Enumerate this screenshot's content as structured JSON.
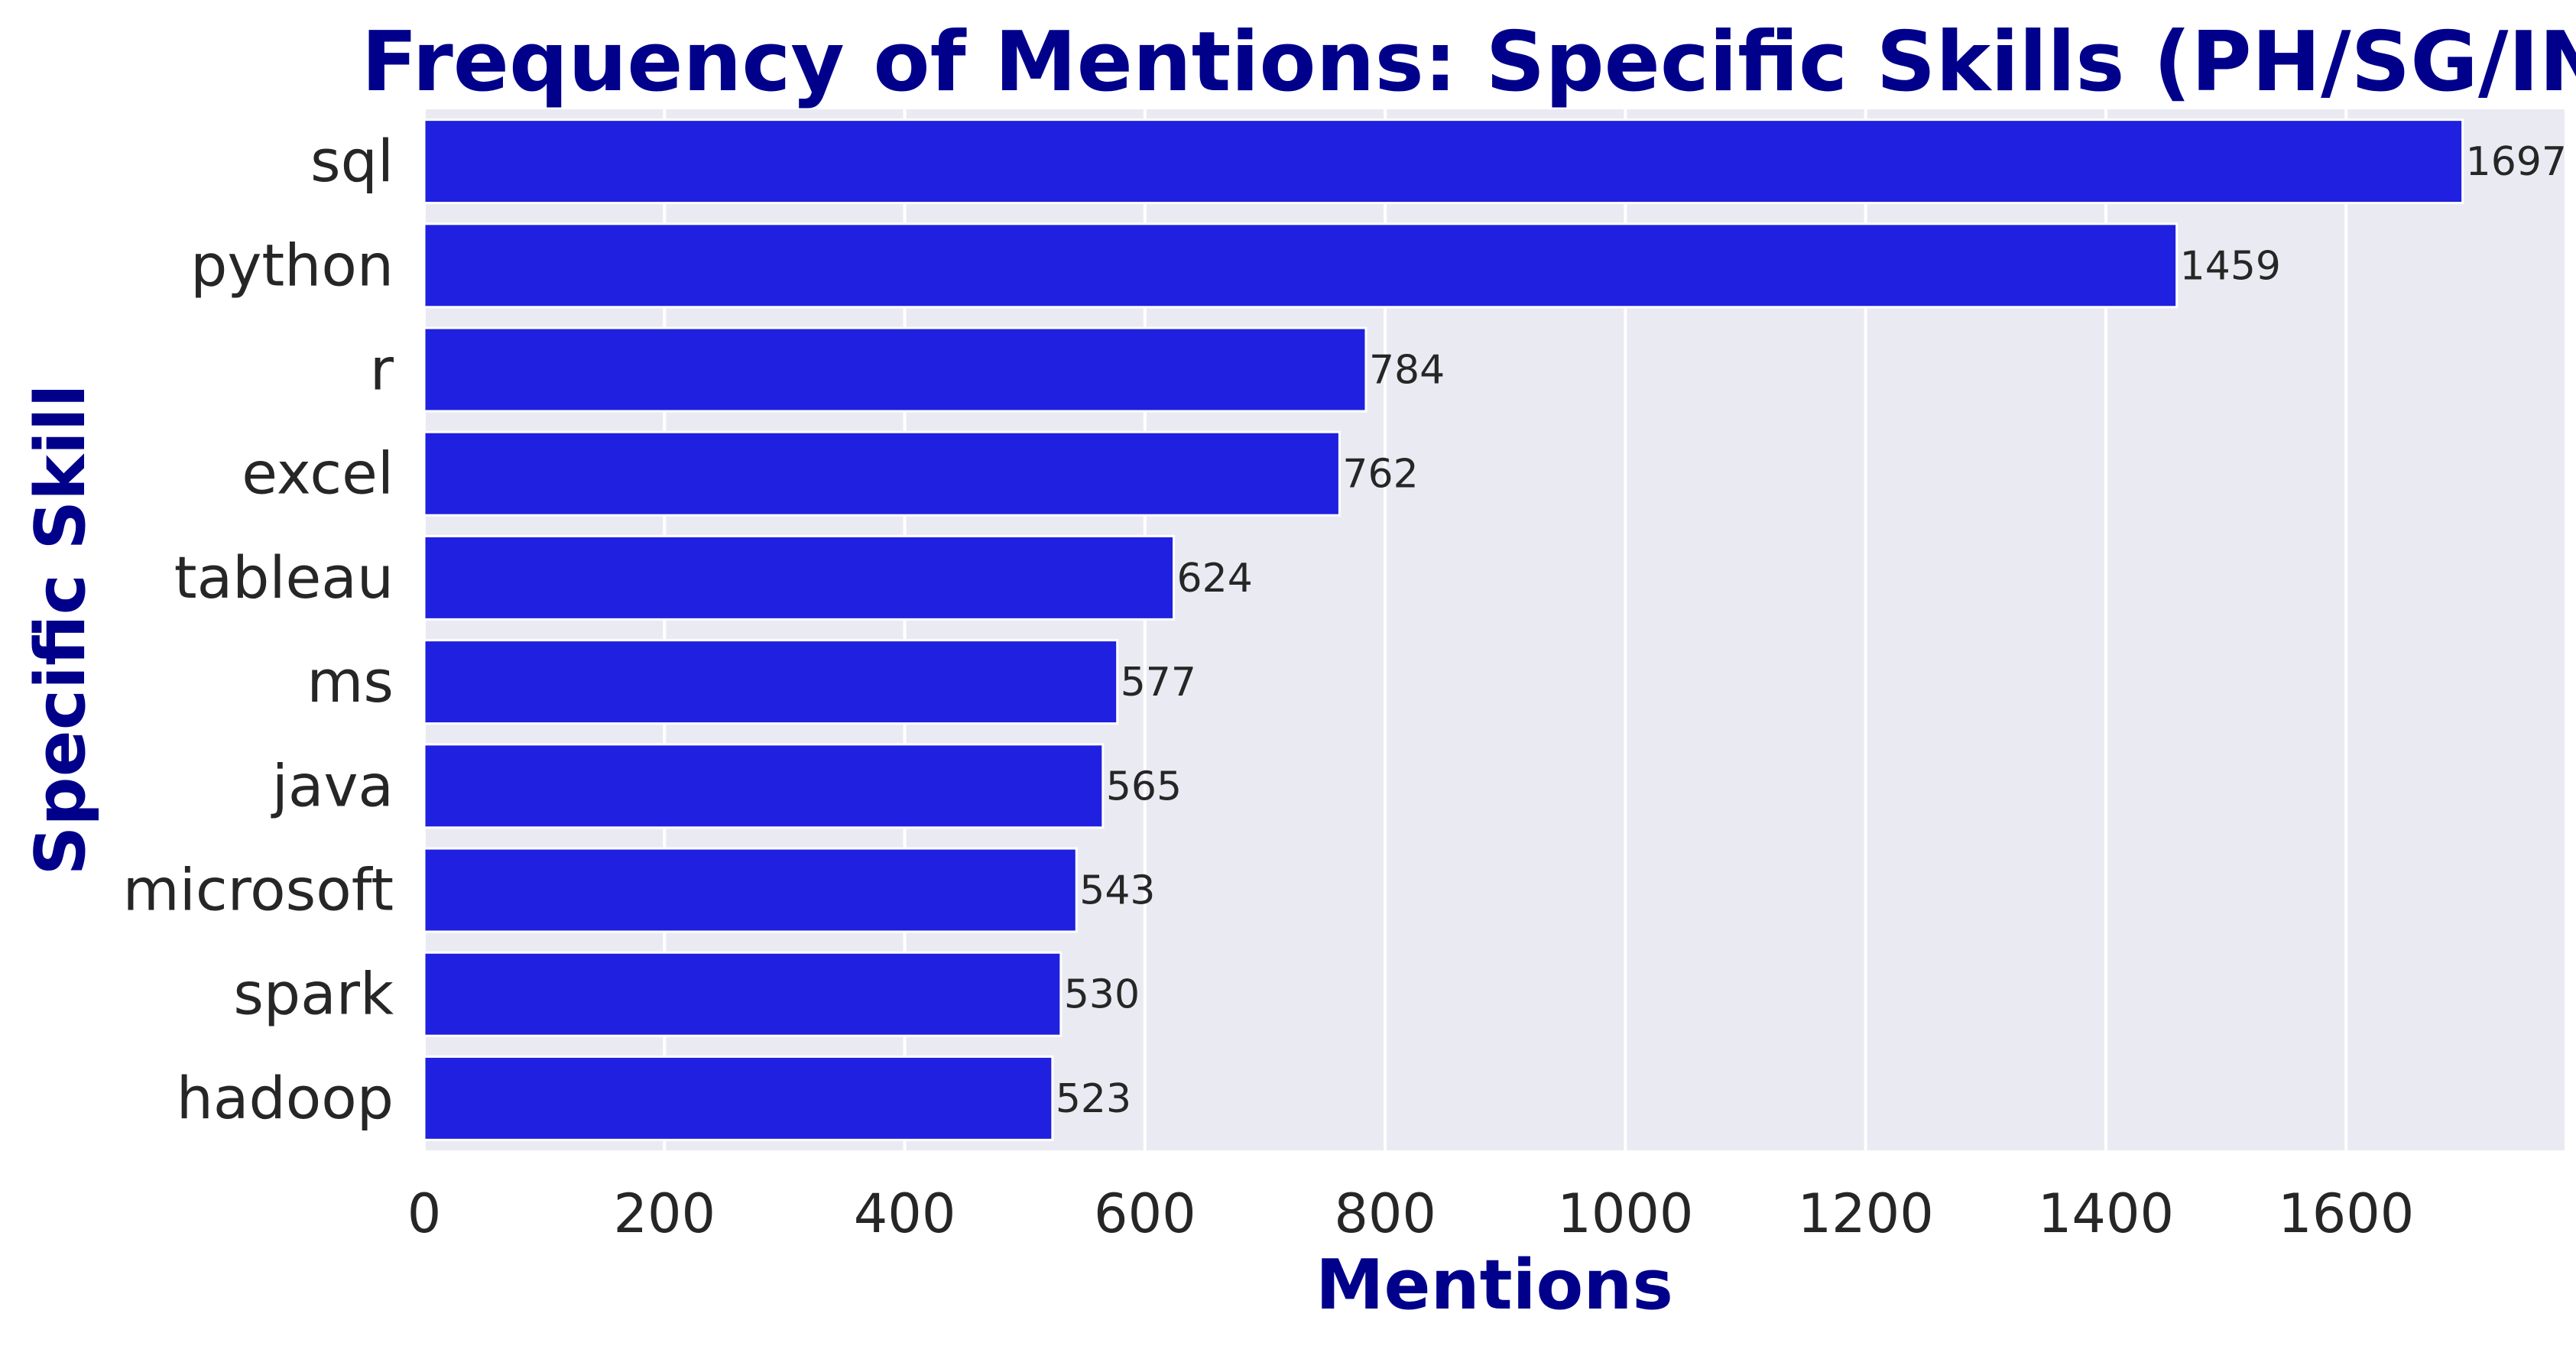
{
  "chart_data": {
    "type": "bar",
    "orientation": "horizontal",
    "title": "Frequency of Mentions: Specific Skills (PH/SG/IN)",
    "xlabel": "Mentions",
    "ylabel": "Specific Skill",
    "categories": [
      "sql",
      "python",
      "r",
      "excel",
      "tableau",
      "ms",
      "java",
      "microsoft",
      "spark",
      "hadoop"
    ],
    "values": [
      1697,
      1459,
      784,
      762,
      624,
      577,
      565,
      543,
      530,
      523
    ],
    "data_labels": [
      "1697",
      "1459",
      "784",
      "762",
      "624",
      "577",
      "565",
      "543",
      "530",
      "523"
    ],
    "xticks": [
      0,
      200,
      400,
      600,
      800,
      1000,
      1200,
      1400,
      1600
    ],
    "xtick_labels": [
      "0",
      "200",
      "400",
      "600",
      "800",
      "1000",
      "1200",
      "1400",
      "1600"
    ],
    "xlim": [
      0,
      1781.85
    ],
    "grid": true,
    "legend": "none",
    "bar_color": "#2020e0",
    "plot_background": "#eaeaf2",
    "title_color": "#00008b",
    "label_color": "#00008b"
  }
}
